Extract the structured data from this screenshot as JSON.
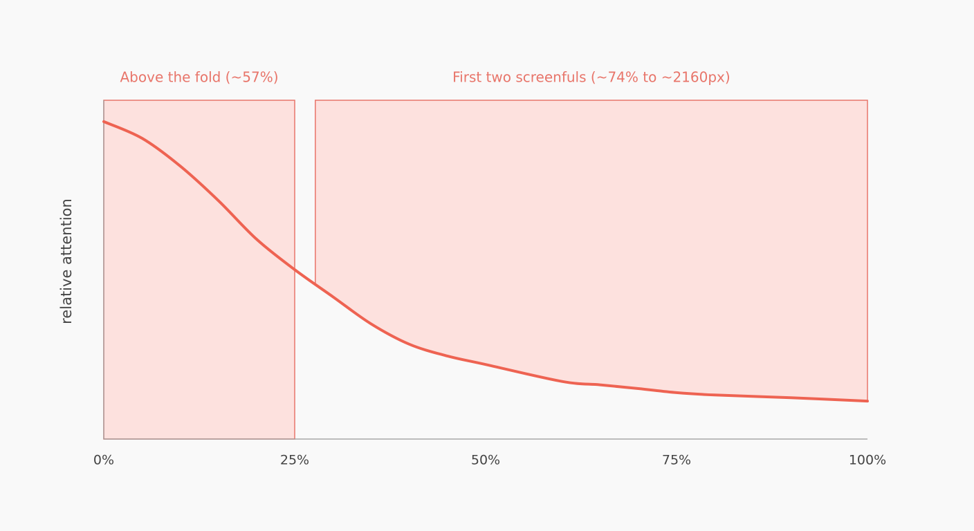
{
  "chart_data": {
    "type": "line",
    "y_label": "relative attention",
    "x": [
      0,
      5,
      10,
      15,
      20,
      25,
      30,
      35,
      40,
      45,
      50,
      60,
      65,
      70,
      75,
      80,
      90,
      100
    ],
    "series": [
      {
        "color": "#ee6352",
        "values": [
          93.7,
          88.8,
          80.6,
          70.4,
          59,
          50,
          42,
          34,
          28,
          24.5,
          22,
          17,
          16,
          14.9,
          13.7,
          13,
          12.2,
          11.2
        ]
      }
    ],
    "regions": [
      {
        "label": "Above the fold (~57%)",
        "x0": 0,
        "x1": 25,
        "fill": "full"
      },
      {
        "label": "First two screenfuls (~74% to ~2160px)",
        "x0": 27.7,
        "x1": 100,
        "fill": "above-line"
      }
    ],
    "region_color": "#fde1de",
    "region_edge": "#e8756a",
    "xlim": [
      0,
      100
    ],
    "ylim": [
      0,
      100
    ],
    "xticks": [
      {
        "value": 0,
        "label": "0%"
      },
      {
        "value": 25,
        "label": "25%"
      },
      {
        "value": 50,
        "label": "50%"
      },
      {
        "value": 75,
        "label": "75%"
      },
      {
        "value": 100,
        "label": "100%"
      }
    ]
  }
}
